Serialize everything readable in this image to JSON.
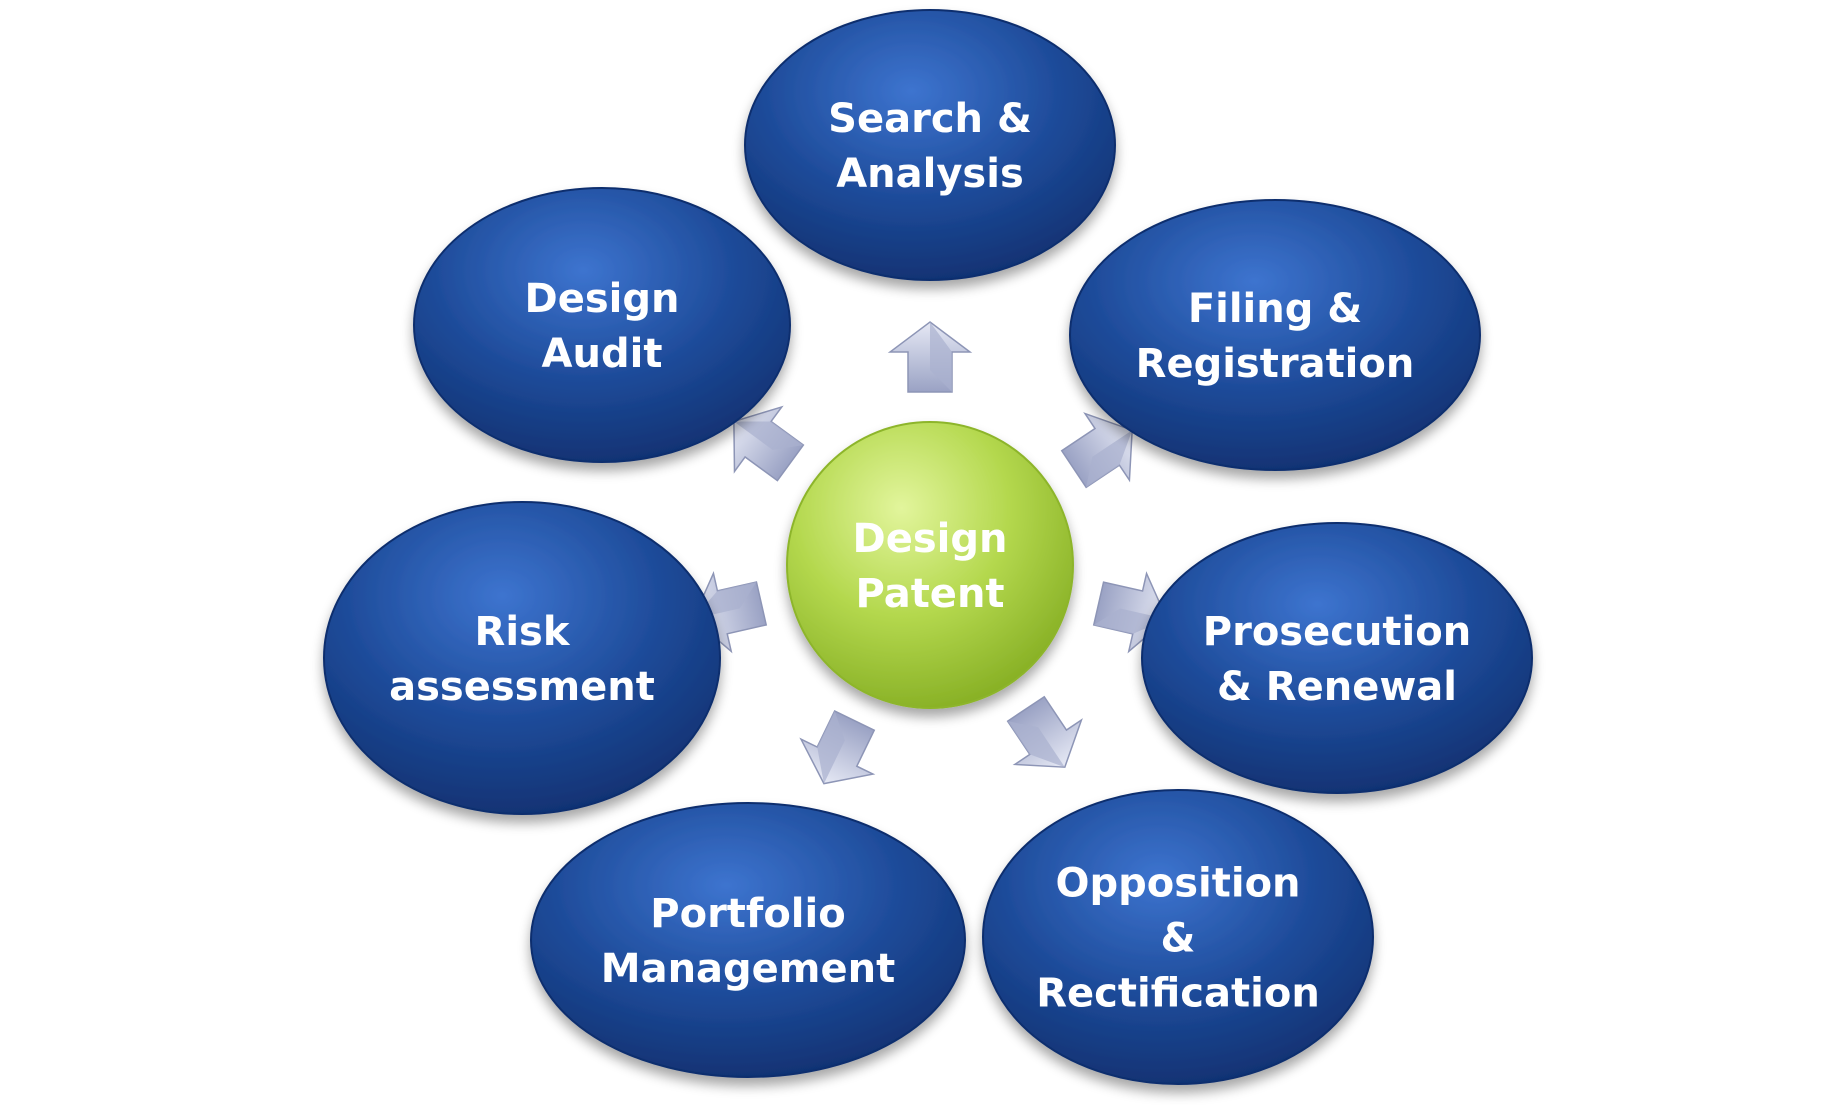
{
  "center": {
    "lines": [
      "Design",
      "Patent"
    ]
  },
  "nodes": [
    {
      "id": "search-analysis",
      "lines": [
        "Search &",
        "Analysis"
      ]
    },
    {
      "id": "filing-registration",
      "lines": [
        "Filing &",
        "Registration"
      ]
    },
    {
      "id": "prosecution-renewal",
      "lines": [
        "Prosecution",
        "& Renewal"
      ]
    },
    {
      "id": "opposition-rectification",
      "lines": [
        "Opposition",
        "&",
        "Rectification"
      ]
    },
    {
      "id": "portfolio-management",
      "lines": [
        "Portfolio",
        "Management"
      ]
    },
    {
      "id": "risk-assessment",
      "lines": [
        "Risk",
        "assessment"
      ]
    },
    {
      "id": "design-audit",
      "lines": [
        "Design",
        "Audit"
      ]
    }
  ],
  "colors": {
    "node_fill": "#1d4a98",
    "node_highlight": "#2c63c0",
    "node_dark": "#0f2f6e",
    "center_fill": "#a6cc3e",
    "center_highlight": "#d9ef8a",
    "arrow_fill": "#c9cfe6",
    "arrow_dark": "#8d95b6",
    "text": "#ffffff"
  }
}
